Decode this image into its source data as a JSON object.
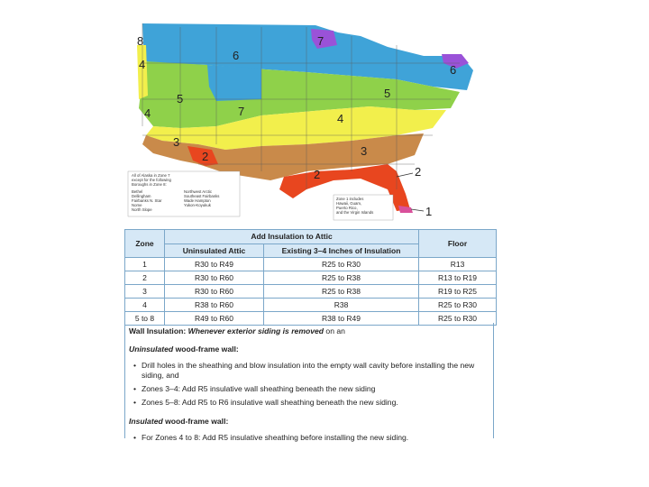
{
  "map": {
    "zone_labels": [
      "1",
      "2",
      "2",
      "2",
      "3",
      "3",
      "4",
      "4",
      "4",
      "5",
      "5",
      "6",
      "6",
      "7",
      "7",
      "8"
    ],
    "alaska_inset": {
      "lines": [
        "All of Alaska in Zone 7",
        "except for the following",
        "Boroughs in Zone 8:"
      ],
      "col_left": [
        "Bethel",
        "Dellingham",
        "Fairbanks N. Star",
        "Nome",
        "North Slope"
      ],
      "col_right": [
        "Northwest Arctic",
        "Southeast Fairbanks",
        "Wade Hampton",
        "Yukon-Koyukuk"
      ]
    },
    "zone1_inset": [
      "Zone 1 includes",
      "Hawaii, Guam,",
      "Puerto Rico,",
      "and the Virgin Islands"
    ],
    "colors": {
      "zone1": "#d9509b",
      "zone2": "#e8461f",
      "zone3": "#c98a4a",
      "zone4": "#f2ef4c",
      "zone5": "#8fd14a",
      "zone6": "#3fa3d8",
      "zone7": "#9a52d8",
      "zone8": "#e5d7f5"
    }
  },
  "table": {
    "headers": {
      "zone": "Zone",
      "attic_group": "Add Insulation to Attic",
      "uninsulated": "Uninsulated Attic",
      "existing": "Existing 3–4 Inches of Insulation",
      "floor": "Floor"
    },
    "rows": [
      {
        "zone": "1",
        "uninsulated": "R30 to R49",
        "existing": "R25 to R30",
        "floor": "R13"
      },
      {
        "zone": "2",
        "uninsulated": "R30 to R60",
        "existing": "R25 to R38",
        "floor": "R13 to R19"
      },
      {
        "zone": "3",
        "uninsulated": "R30 to R60",
        "existing": "R25 to R38",
        "floor": "R19 to R25"
      },
      {
        "zone": "4",
        "uninsulated": "R38 to R60",
        "existing": "R38",
        "floor": "R25 to R30"
      },
      {
        "zone": "5 to 8",
        "uninsulated": "R49 to R60",
        "existing": "R38 to R49",
        "floor": "R25 to R30"
      }
    ]
  },
  "wall": {
    "heading_bold": "Wall Insulation:",
    "heading_italic": "Whenever exterior siding is removed",
    "heading_tail": "on an",
    "uninsulated_word": "Uninsulated",
    "uninsulated_rest": "wood-frame wall:",
    "uninsulated_bullets": [
      "Drill holes in the sheathing and blow insulation into the empty wall cavity before installing the new siding, and",
      "Zones 3–4: Add R5 insulative wall sheathing beneath the new siding",
      "Zones 5–8: Add R5 to R6 insulative wall sheathing beneath the new siding."
    ],
    "insulated_word": "Insulated",
    "insulated_rest": "wood-frame wall:",
    "insulated_bullets": [
      "For Zones 4 to 8: Add R5 insulative sheathing before installing the new siding."
    ]
  }
}
